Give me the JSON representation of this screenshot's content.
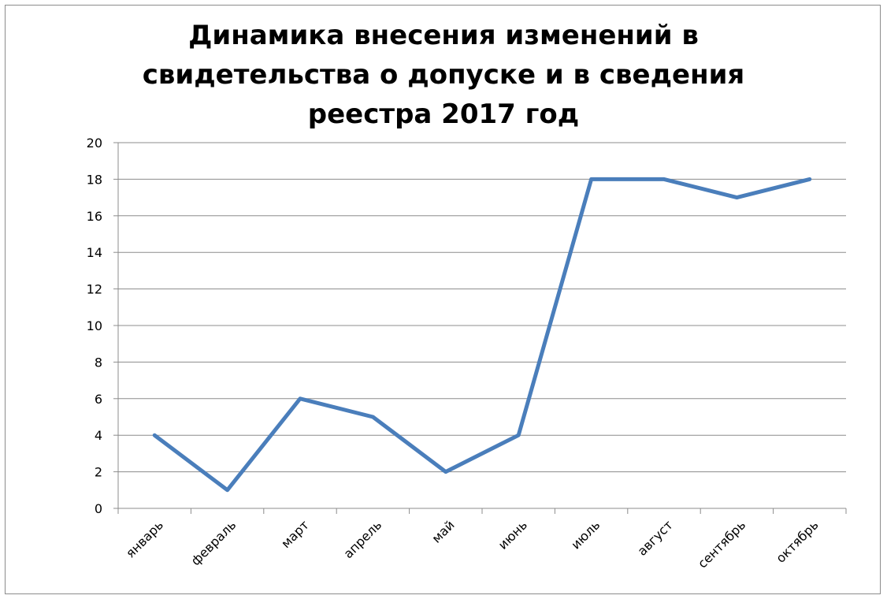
{
  "chart_data": {
    "type": "line",
    "title_lines": [
      "Динамика внесения изменений в",
      "свидетельства о допуске и в сведения",
      "реестра 2017 год"
    ],
    "categories": [
      "январь",
      "февраль",
      "март",
      "апрель",
      "май",
      "июнь",
      "июль",
      "август",
      "сентябрь",
      "октябрь"
    ],
    "series": [
      {
        "values": [
          4,
          1,
          6,
          5,
          2,
          4,
          18,
          18,
          17,
          18
        ],
        "color": "#4a7ebb"
      }
    ],
    "y_ticks": [
      "0",
      "2",
      "4",
      "6",
      "8",
      "10",
      "12",
      "14",
      "16",
      "18",
      "20"
    ],
    "ylim": [
      0,
      20
    ],
    "xlabel": "",
    "ylabel": "",
    "grid": true,
    "legend": "none"
  }
}
